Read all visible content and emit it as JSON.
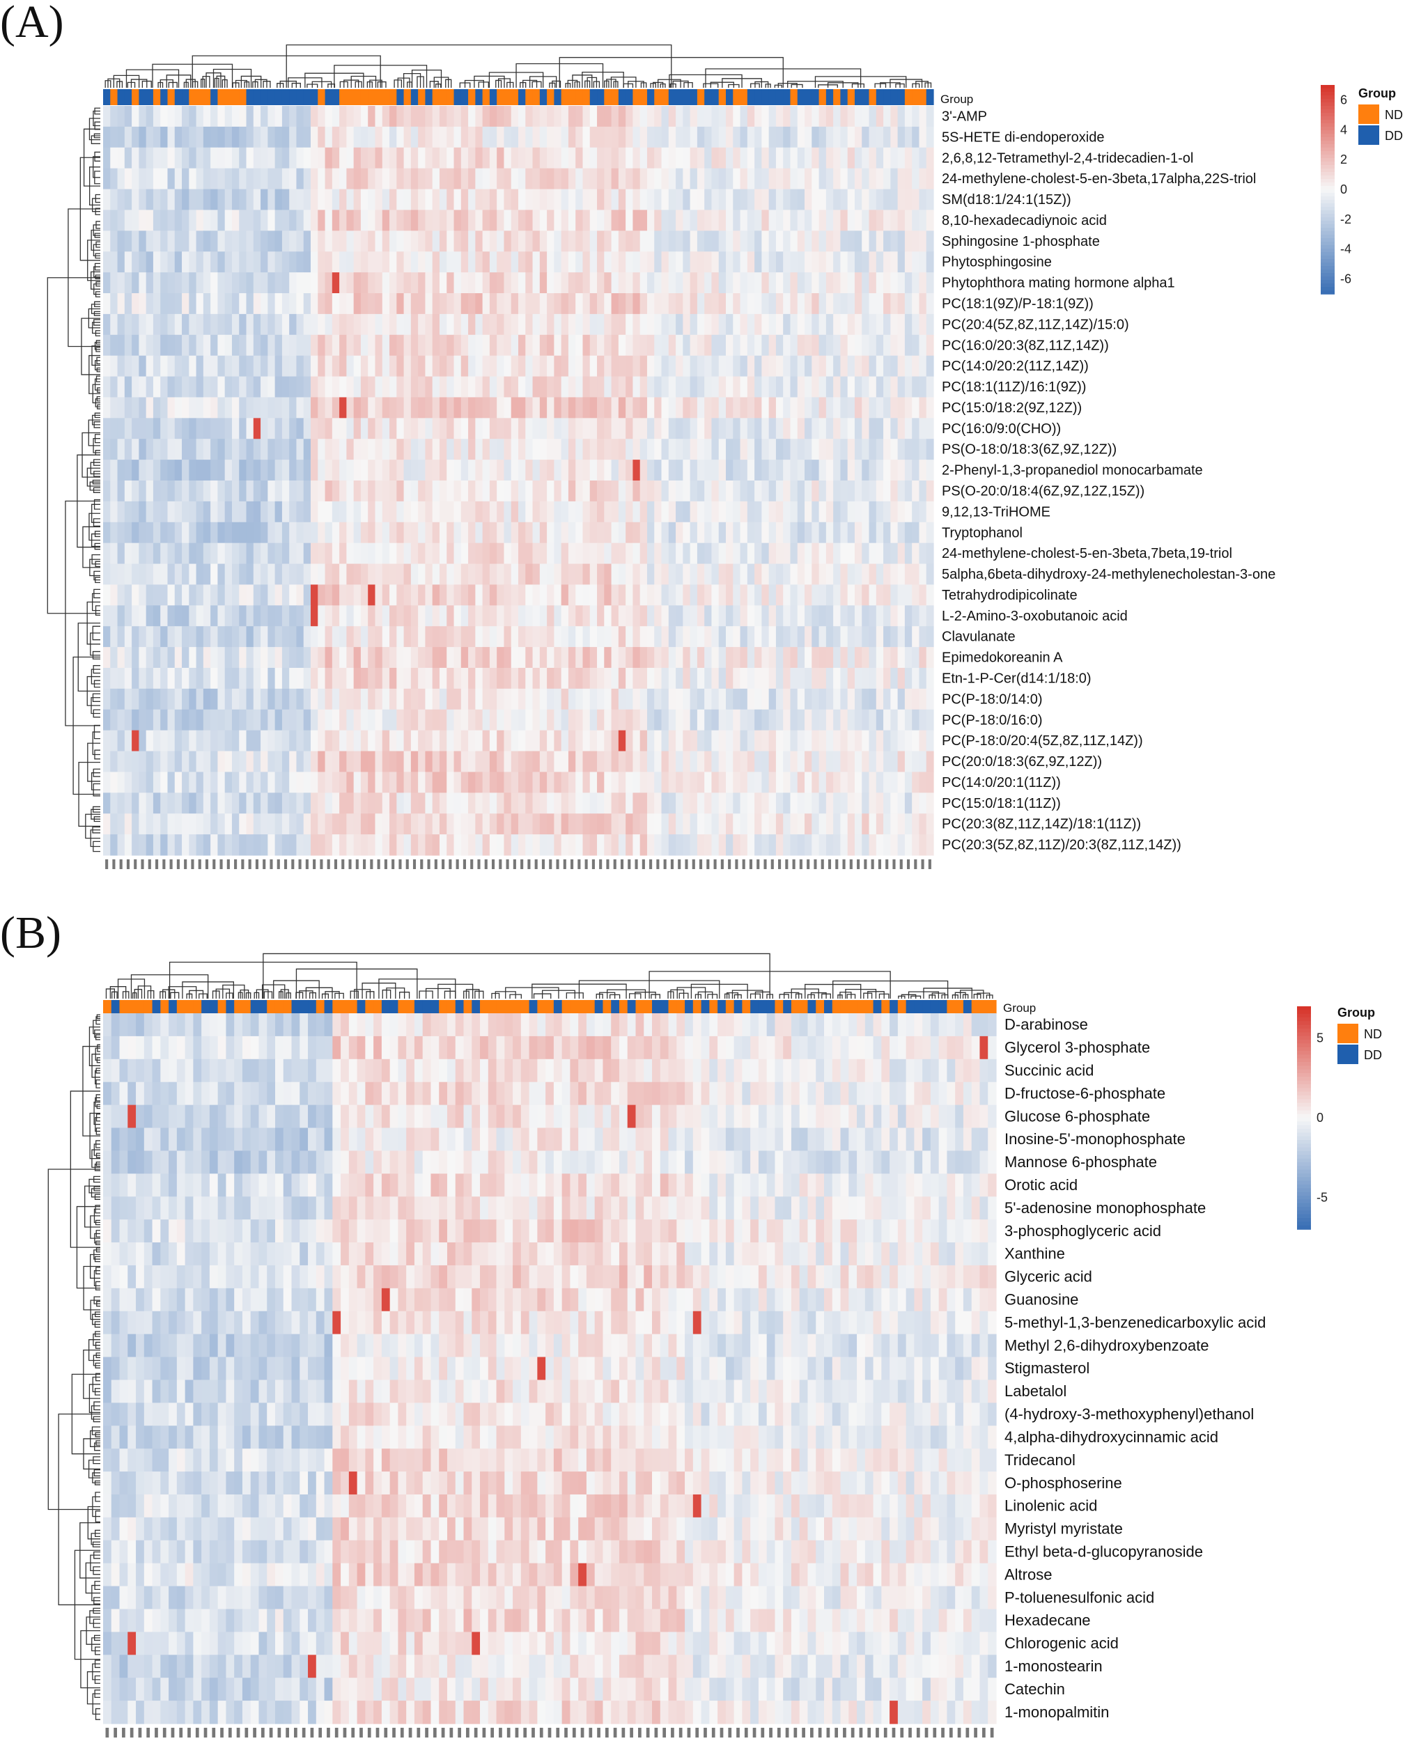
{
  "panels": [
    {
      "letter": "(A)",
      "chart_data": {
        "type": "heatmap",
        "title": "",
        "group_header": "Group",
        "legend_title": "Group",
        "legend_groups": [
          {
            "name": "ND",
            "color": "#FF7F0E"
          },
          {
            "name": "DD",
            "color": "#1F5FAE"
          }
        ],
        "colorbar": {
          "min": -7,
          "max": 7,
          "ticks": [
            6,
            4,
            2,
            0,
            -2,
            -4,
            -6
          ],
          "low_color": "#3A6FB5",
          "mid_color": "#F7F7F7",
          "high_color": "#D7342A"
        },
        "n_columns": 116,
        "rows": [
          "3'-AMP",
          "5S-HETE di-endoperoxide",
          "2,6,8,12-Tetramethyl-2,4-tridecadien-1-ol",
          "24-methylene-cholest-5-en-3beta,17alpha,22S-triol",
          "SM(d18:1/24:1(15Z))",
          "8,10-hexadecadiynoic acid",
          "Sphingosine 1-phosphate",
          "Phytosphingosine",
          "Phytophthora mating hormone alpha1",
          "PC(18:1(9Z)/P-18:1(9Z))",
          "PC(20:4(5Z,8Z,11Z,14Z)/15:0)",
          "PC(16:0/20:3(8Z,11Z,14Z))",
          "PC(14:0/20:2(11Z,14Z))",
          "PC(18:1(11Z)/16:1(9Z))",
          "PC(15:0/18:2(9Z,12Z))",
          "PC(16:0/9:0(CHO))",
          "PS(O-18:0/18:3(6Z,9Z,12Z))",
          "2-Phenyl-1,3-propanediol monocarbamate",
          "PS(O-20:0/18:4(6Z,9Z,12Z,15Z))",
          "9,12,13-TriHOME",
          "Tryptophanol",
          "24-methylene-cholest-5-en-3beta,7beta,19-triol",
          "5alpha,6beta-dihydroxy-24-methylenecholestan-3-one",
          "Tetrahydrodipicolinate",
          "L-2-Amino-3-oxobutanoic acid",
          "Clavulanate",
          "Epimedokoreanin A",
          "Etn-1-P-Cer(d14:1/18:0)",
          "PC(P-18:0/14:0)",
          "PC(P-18:0/16:0)",
          "PC(P-18:0/20:4(5Z,8Z,11Z,14Z))",
          "PC(20:0/18:3(6Z,9Z,12Z))",
          "PC(14:0/20:1(11Z))",
          "PC(15:0/18:1(11Z))",
          "PC(20:3(8Z,11Z,14Z)/18:1(11Z))",
          "PC(20:3(5Z,8Z,11Z)/20:3(8Z,11Z,14Z))"
        ]
      }
    },
    {
      "letter": "(B)",
      "chart_data": {
        "type": "heatmap",
        "title": "",
        "group_header": "Group",
        "legend_title": "Group",
        "legend_groups": [
          {
            "name": "ND",
            "color": "#FF7F0E"
          },
          {
            "name": "DD",
            "color": "#1F5FAE"
          }
        ],
        "colorbar": {
          "min": -7,
          "max": 7,
          "ticks": [
            5,
            0,
            -5
          ],
          "low_color": "#3A6FB5",
          "mid_color": "#F7F7F7",
          "high_color": "#D7342A"
        },
        "n_columns": 109,
        "rows": [
          "D-arabinose",
          "Glycerol 3-phosphate",
          "Succinic acid",
          "D-fructose-6-phosphate",
          "Glucose 6-phosphate",
          "Inosine-5'-monophosphate",
          "Mannose 6-phosphate",
          "Orotic acid",
          "5'-adenosine monophosphate",
          "3-phosphoglyceric acid",
          "Xanthine",
          "Glyceric acid",
          "Guanosine",
          "5-methyl-1,3-benzenedicarboxylic acid",
          "Methyl 2,6-dihydroxybenzoate",
          "Stigmasterol",
          "Labetalol",
          "(4-hydroxy-3-methoxyphenyl)ethanol",
          "4,alpha-dihydroxycinnamic acid",
          "Tridecanol",
          "O-phosphoserine",
          "Linolenic acid",
          "Myristyl myristate",
          "Ethyl beta-d-glucopyranoside",
          "Altrose",
          "P-toluenesulfonic acid",
          "Hexadecane",
          "Chlorogenic acid",
          "1-monostearin",
          "Catechin",
          "1-monopalmitin"
        ]
      }
    }
  ]
}
